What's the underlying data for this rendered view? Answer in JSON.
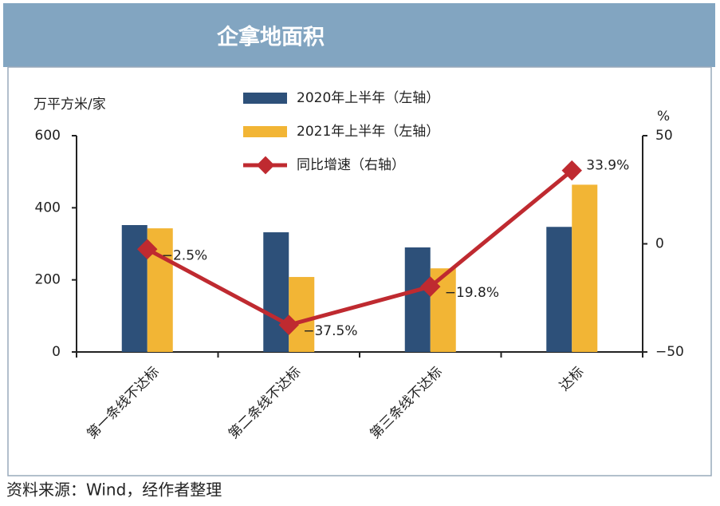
{
  "header": {
    "title": "企拿地面积"
  },
  "chart_data": {
    "type": "bar",
    "y_label": "万平方米/家",
    "y2_label": "%",
    "categories": [
      "第一条线不达标",
      "第二条线不达标",
      "第三条线不达标",
      "达标"
    ],
    "series": [
      {
        "name": "2020年上半年（左轴）",
        "color": "#2d5079",
        "values": [
          352,
          332,
          290,
          347
        ]
      },
      {
        "name": "2021年上半年（左轴）",
        "color": "#f2b535",
        "values": [
          343,
          208,
          232,
          464
        ]
      },
      {
        "name": "同比增速（右轴）",
        "color": "#bf2a30",
        "type": "line",
        "axis": "y2",
        "values": [
          -2.5,
          -37.5,
          -19.8,
          33.9
        ],
        "value_labels": [
          "−2.5%",
          "−37.5%",
          "−19.8%",
          "33.9%"
        ]
      }
    ],
    "ylim": [
      0,
      600
    ],
    "yticks": [
      0,
      200,
      400,
      600
    ],
    "y2lim": [
      -50,
      50
    ],
    "y2ticks": [
      {
        "value": -50,
        "label": "−50"
      },
      0,
      50
    ],
    "grid": false
  },
  "source": "资料来源：Wind，经作者整理"
}
